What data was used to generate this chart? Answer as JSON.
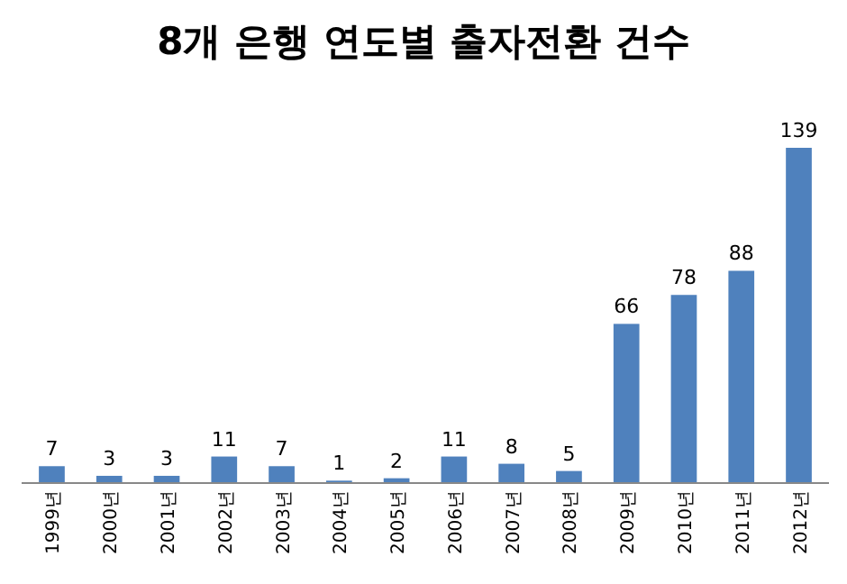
{
  "chart_data": {
    "type": "bar",
    "title": "8개 은행 연도별 출자전환 건수",
    "categories": [
      "1999년",
      "2000년",
      "2001년",
      "2002년",
      "2003년",
      "2004년",
      "2005년",
      "2006년",
      "2007년",
      "2008년",
      "2009년",
      "2010년",
      "2011년",
      "2012년"
    ],
    "values": [
      7,
      3,
      3,
      11,
      7,
      1,
      2,
      11,
      8,
      5,
      66,
      78,
      88,
      139
    ],
    "color": "#4f81bd",
    "data_labels": true
  }
}
